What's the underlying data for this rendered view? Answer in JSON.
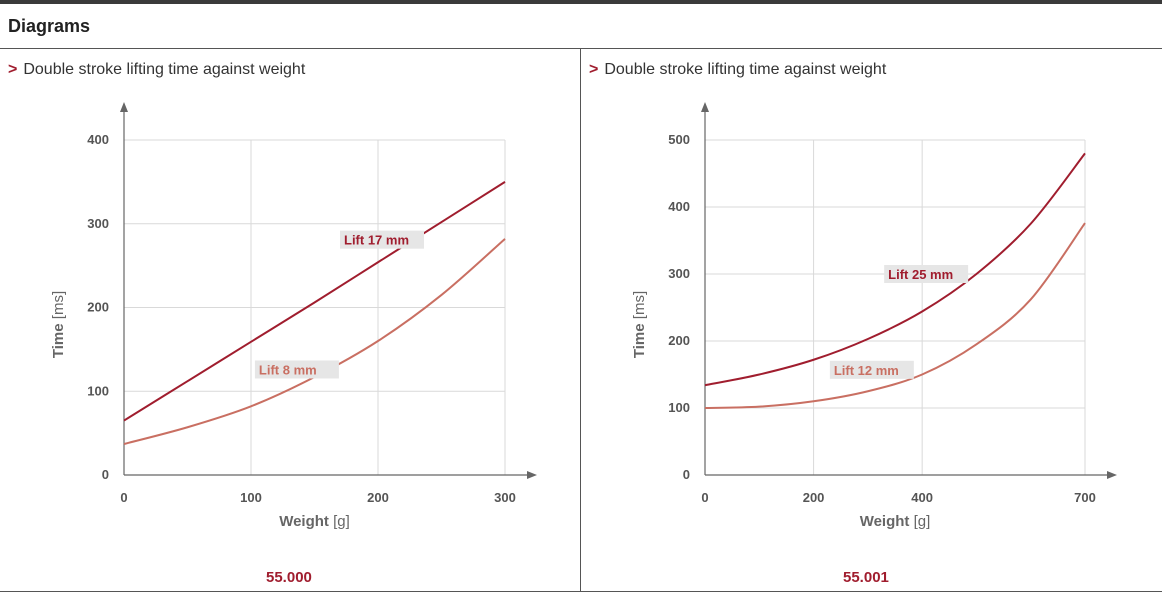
{
  "section": {
    "title": "Diagrams"
  },
  "colors": {
    "dark_red": "#a01d2e",
    "light_red": "#c96f62",
    "grid": "#d9d9d9",
    "axis": "#666666",
    "label_bg": "#e6e6e6"
  },
  "panels": [
    {
      "heading_chevron": ">",
      "heading": "Double stroke lifting time against weight",
      "code": "55.000"
    },
    {
      "heading_chevron": ">",
      "heading": "Double stroke lifting time against weight",
      "code": "55.001"
    }
  ],
  "chart_data": [
    {
      "type": "line",
      "title": "Double stroke lifting time against weight",
      "xlabel": "Weight",
      "xunit": "[g]",
      "ylabel": "Time",
      "yunit": "[ms]",
      "xlim": [
        0,
        300
      ],
      "ylim": [
        0,
        400
      ],
      "xticks": [
        0,
        100,
        200,
        300
      ],
      "yticks": [
        0,
        100,
        200,
        300,
        400
      ],
      "grid": true,
      "series": [
        {
          "name_bold": "Lift",
          "name_rest": " 17 mm",
          "color": "#a01d2e",
          "x": [
            0,
            50,
            100,
            150,
            200,
            250,
            300
          ],
          "y": [
            65,
            112,
            159,
            206,
            254,
            302,
            350
          ]
        },
        {
          "name_bold": "Lift",
          "name_rest": " 8 mm",
          "color": "#c96f62",
          "x": [
            0,
            50,
            100,
            150,
            200,
            250,
            300
          ],
          "y": [
            37,
            57,
            82,
            117,
            160,
            215,
            282
          ]
        }
      ]
    },
    {
      "type": "line",
      "title": "Double stroke lifting time against weight",
      "xlabel": "Weight",
      "xunit": "[g]",
      "ylabel": "Time",
      "yunit": "[ms]",
      "xlim": [
        0,
        700
      ],
      "ylim": [
        0,
        500
      ],
      "xticks": [
        0,
        200,
        400,
        700
      ],
      "yticks": [
        0,
        100,
        200,
        300,
        400,
        500
      ],
      "grid": true,
      "series": [
        {
          "name_bold": "Lift",
          "name_rest": " 25 mm",
          "color": "#a01d2e",
          "x": [
            0,
            100,
            200,
            300,
            400,
            500,
            600,
            700
          ],
          "y": [
            134,
            150,
            172,
            203,
            244,
            300,
            375,
            480
          ]
        },
        {
          "name_bold": "Lift",
          "name_rest": " 12 mm",
          "color": "#c96f62",
          "x": [
            0,
            100,
            200,
            300,
            400,
            500,
            600,
            700
          ],
          "y": [
            100,
            102,
            110,
            125,
            150,
            195,
            262,
            376
          ]
        }
      ]
    }
  ]
}
